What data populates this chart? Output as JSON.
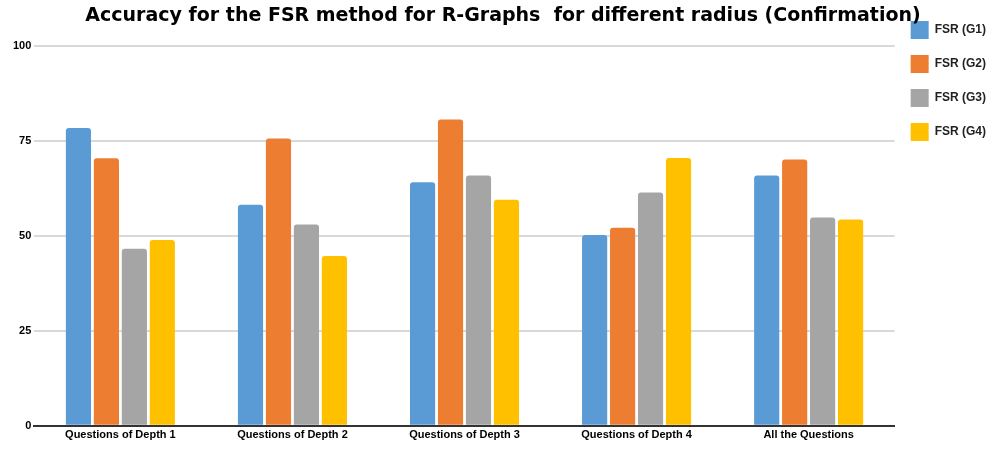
{
  "chart_data": {
    "type": "bar",
    "title": "Accuracy for the FSR method for R-Graphs  for different radius (Confirmation)",
    "categories": [
      "Questions of Depth 1",
      "Questions of Depth 2",
      "Questions of Depth 3",
      "Questions of Depth 4",
      "All the Questions"
    ],
    "series": [
      {
        "name": "FSR (G1)",
        "color": "#5b9bd5",
        "values": [
          78.4,
          58.2,
          64.1,
          50.2,
          65.9
        ]
      },
      {
        "name": "FSR (G2)",
        "color": "#ed7d31",
        "values": [
          70.4,
          75.6,
          80.6,
          52.1,
          70.1
        ]
      },
      {
        "name": "FSR (G3)",
        "color": "#a5a5a5",
        "values": [
          46.6,
          53.0,
          65.9,
          61.4,
          54.8
        ]
      },
      {
        "name": "FSR (G4)",
        "color": "#ffc000",
        "values": [
          48.9,
          44.7,
          59.5,
          70.5,
          54.3
        ]
      }
    ],
    "ylim": [
      0,
      100
    ],
    "yticks": [
      0,
      25,
      50,
      75,
      100
    ],
    "grid": "y",
    "legend": "top right"
  }
}
